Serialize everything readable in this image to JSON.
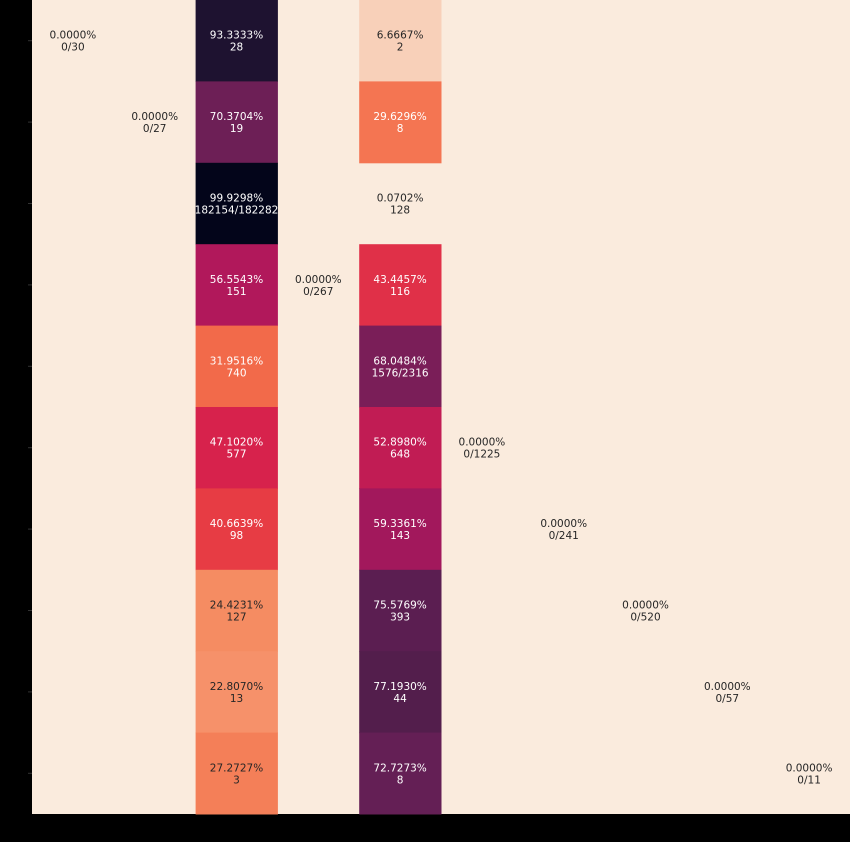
{
  "chart_data": {
    "type": "heatmap",
    "n_rows": 10,
    "n_cols": 10,
    "color_scale": "rocket",
    "empty_cell_color": "#faebdd",
    "cells": [
      {
        "row": 0,
        "col": 0,
        "value": 0.0,
        "pct": "0.0000%",
        "count": "0/30"
      },
      {
        "row": 0,
        "col": 2,
        "value": 93.3333,
        "pct": "93.3333%",
        "count": "28",
        "color": "#1e1230"
      },
      {
        "row": 0,
        "col": 4,
        "value": 6.6667,
        "pct": "6.6667%",
        "count": "2",
        "color": "#f8d0b9"
      },
      {
        "row": 1,
        "col": 1,
        "value": 0.0,
        "pct": "0.0000%",
        "count": "0/27"
      },
      {
        "row": 1,
        "col": 2,
        "value": 70.3704,
        "pct": "70.3704%",
        "count": "19",
        "color": "#6d1f56"
      },
      {
        "row": 1,
        "col": 4,
        "value": 29.6296,
        "pct": "29.6296%",
        "count": "8",
        "color": "#f47552"
      },
      {
        "row": 2,
        "col": 2,
        "value": 99.9298,
        "pct": "99.9298%",
        "count": "182154/182282",
        "color": "#03051a"
      },
      {
        "row": 2,
        "col": 4,
        "value": 0.0702,
        "pct": "0.0702%",
        "count": "128"
      },
      {
        "row": 3,
        "col": 2,
        "value": 56.5543,
        "pct": "56.5543%",
        "count": "151",
        "color": "#b1185b"
      },
      {
        "row": 3,
        "col": 3,
        "value": 0.0,
        "pct": "0.0000%",
        "count": "0/267"
      },
      {
        "row": 3,
        "col": 4,
        "value": 43.4457,
        "pct": "43.4457%",
        "count": "116",
        "color": "#e03048"
      },
      {
        "row": 4,
        "col": 2,
        "value": 31.9516,
        "pct": "31.9516%",
        "count": "740",
        "color": "#f26a4a"
      },
      {
        "row": 4,
        "col": 4,
        "value": 68.0484,
        "pct": "68.0484%",
        "count": "1576/2316",
        "color": "#7a1e58"
      },
      {
        "row": 5,
        "col": 2,
        "value": 47.102,
        "pct": "47.1020%",
        "count": "577",
        "color": "#d7224c"
      },
      {
        "row": 5,
        "col": 4,
        "value": 52.898,
        "pct": "52.8980%",
        "count": "648",
        "color": "#c11c54"
      },
      {
        "row": 5,
        "col": 5,
        "value": 0.0,
        "pct": "0.0000%",
        "count": "0/1225"
      },
      {
        "row": 6,
        "col": 2,
        "value": 40.6639,
        "pct": "40.6639%",
        "count": "98",
        "color": "#e73c44"
      },
      {
        "row": 6,
        "col": 4,
        "value": 59.3361,
        "pct": "59.3361%",
        "count": "143",
        "color": "#a2185c"
      },
      {
        "row": 6,
        "col": 6,
        "value": 0.0,
        "pct": "0.0000%",
        "count": "0/241"
      },
      {
        "row": 7,
        "col": 2,
        "value": 24.4231,
        "pct": "24.4231%",
        "count": "127",
        "color": "#f58c62"
      },
      {
        "row": 7,
        "col": 4,
        "value": 75.5769,
        "pct": "75.5769%",
        "count": "393",
        "color": "#5b1e51"
      },
      {
        "row": 7,
        "col": 7,
        "value": 0.0,
        "pct": "0.0000%",
        "count": "0/520"
      },
      {
        "row": 8,
        "col": 2,
        "value": 22.807,
        "pct": "22.8070%",
        "count": "13",
        "color": "#f6916a"
      },
      {
        "row": 8,
        "col": 4,
        "value": 77.193,
        "pct": "77.1930%",
        "count": "44",
        "color": "#531e4c"
      },
      {
        "row": 8,
        "col": 8,
        "value": 0.0,
        "pct": "0.0000%",
        "count": "0/57"
      },
      {
        "row": 9,
        "col": 2,
        "value": 27.2727,
        "pct": "27.2727%",
        "count": "3",
        "color": "#f47f58"
      },
      {
        "row": 9,
        "col": 4,
        "value": 72.7273,
        "pct": "72.7273%",
        "count": "8",
        "color": "#641f55"
      },
      {
        "row": 9,
        "col": 9,
        "value": 0.0,
        "pct": "0.0000%",
        "count": "0/11"
      }
    ]
  }
}
